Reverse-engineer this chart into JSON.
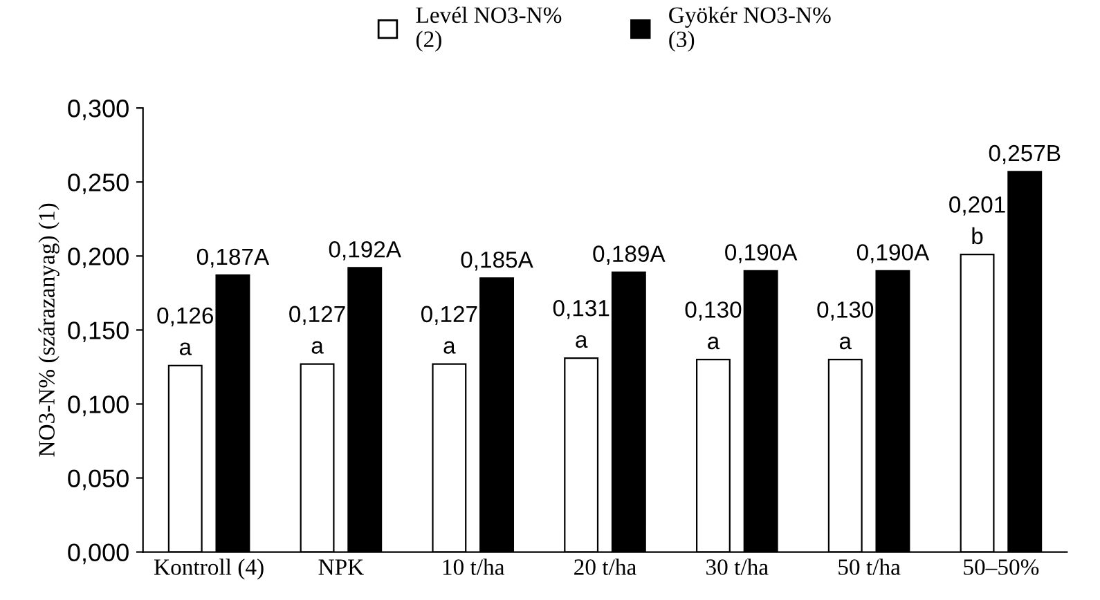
{
  "chart_data": {
    "type": "bar",
    "ylabel": "NO3-N% (szárazanyag) (1)",
    "categories": [
      "Kontroll (4)",
      "NPK",
      "10 t/ha",
      "20 t/ha",
      "30 t/ha",
      "50 t/ha",
      "50–50%"
    ],
    "series": [
      {
        "name": "Levél NO3-N%\n(2)",
        "color": "#ffffff",
        "values": [
          0.126,
          0.127,
          0.127,
          0.131,
          0.13,
          0.13,
          0.201
        ],
        "value_labels": [
          "0,126\na",
          "0,127\na",
          "0,127\na",
          "0,131\na",
          "0,130\na",
          "0,130\na",
          "0,201\nb"
        ]
      },
      {
        "name": "Gyökér NO3-N%\n(3)",
        "color": "#000000",
        "values": [
          0.187,
          0.192,
          0.185,
          0.189,
          0.19,
          0.19,
          0.257
        ],
        "value_labels": [
          "0,187A",
          "0,192A",
          "0,185A",
          "0,189A",
          "0,190A",
          "0,190A",
          "0,257B"
        ]
      }
    ],
    "ylim": [
      0,
      0.3
    ],
    "yticks": [
      {
        "value": 0,
        "label": "0,000"
      },
      {
        "value": 0.05,
        "label": "0,050"
      },
      {
        "value": 0.1,
        "label": "0,100"
      },
      {
        "value": 0.15,
        "label": "0,150"
      },
      {
        "value": 0.2,
        "label": "0,200"
      },
      {
        "value": 0.25,
        "label": "0,250"
      },
      {
        "value": 0.3,
        "label": "0,300"
      }
    ],
    "grid": false,
    "legend": "top"
  }
}
